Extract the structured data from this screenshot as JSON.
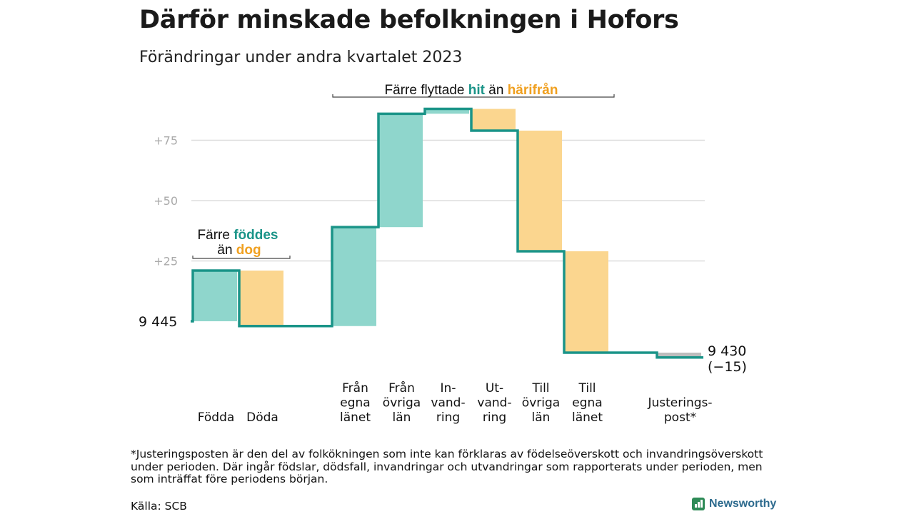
{
  "title": "Därför minskade befolkningen i Hofors",
  "subtitle": "Förändringar under andra kvartalet 2023",
  "footnote": "*Justeringsposten är den del av folkökningen som inte kan förklaras av födelseöverskott och invandringsöverskott under perioden. Där ingår födslar, dödsfall, invandringar och utvandringar som rapporterats under perioden, men som inträffat före periodens början.",
  "source": "Källa: SCB",
  "brand": "Newsworthy",
  "colors": {
    "increase": "#8fd6cc",
    "decrease": "#fbd68f",
    "line": "#1a9488",
    "adjustment": "#bdbdbd",
    "grid": "#dddddd",
    "orange_text": "#f0a020"
  },
  "chart_data": {
    "type": "waterfall",
    "start_label": "9  445",
    "start_value": 9445,
    "end_label_value": "9 430",
    "end_label_change": "(−15)",
    "ylim": [
      -15,
      90
    ],
    "y_ticks": [
      {
        "value": 25,
        "label": "+25"
      },
      {
        "value": 50,
        "label": "+50"
      },
      {
        "value": 75,
        "label": "+75"
      }
    ],
    "grid": true,
    "steps": [
      {
        "category": [
          "Födda"
        ],
        "value": 21,
        "kind": "increase"
      },
      {
        "category": [
          "Döda"
        ],
        "value": -23,
        "kind": "decrease"
      },
      {
        "category": [],
        "value": 0,
        "kind": "gap"
      },
      {
        "category": [
          "Från",
          "egna",
          "länet"
        ],
        "value": 41,
        "kind": "increase"
      },
      {
        "category": [
          "Från",
          "övriga",
          "län"
        ],
        "value": 47,
        "kind": "increase"
      },
      {
        "category": [
          "In-",
          "vand-",
          "ring"
        ],
        "value": 2,
        "kind": "increase"
      },
      {
        "category": [
          "Ut-",
          "vand-",
          "ring"
        ],
        "value": -9,
        "kind": "decrease"
      },
      {
        "category": [
          "Till",
          "övriga",
          "län"
        ],
        "value": -50,
        "kind": "decrease"
      },
      {
        "category": [
          "Till",
          "egna",
          "länet"
        ],
        "value": -42,
        "kind": "decrease"
      },
      {
        "category": [],
        "value": 0,
        "kind": "gap"
      },
      {
        "category": [
          "Justerings-",
          "post*"
        ],
        "value": -2,
        "kind": "adjustment"
      }
    ],
    "annotations": [
      {
        "prefix": "Färre",
        "word1": "föddes",
        "middle": "än",
        "word2": "dog"
      },
      {
        "prefix": "Färre flyttade",
        "word1": "hit",
        "middle": "än",
        "word2": "härifrån"
      }
    ]
  }
}
